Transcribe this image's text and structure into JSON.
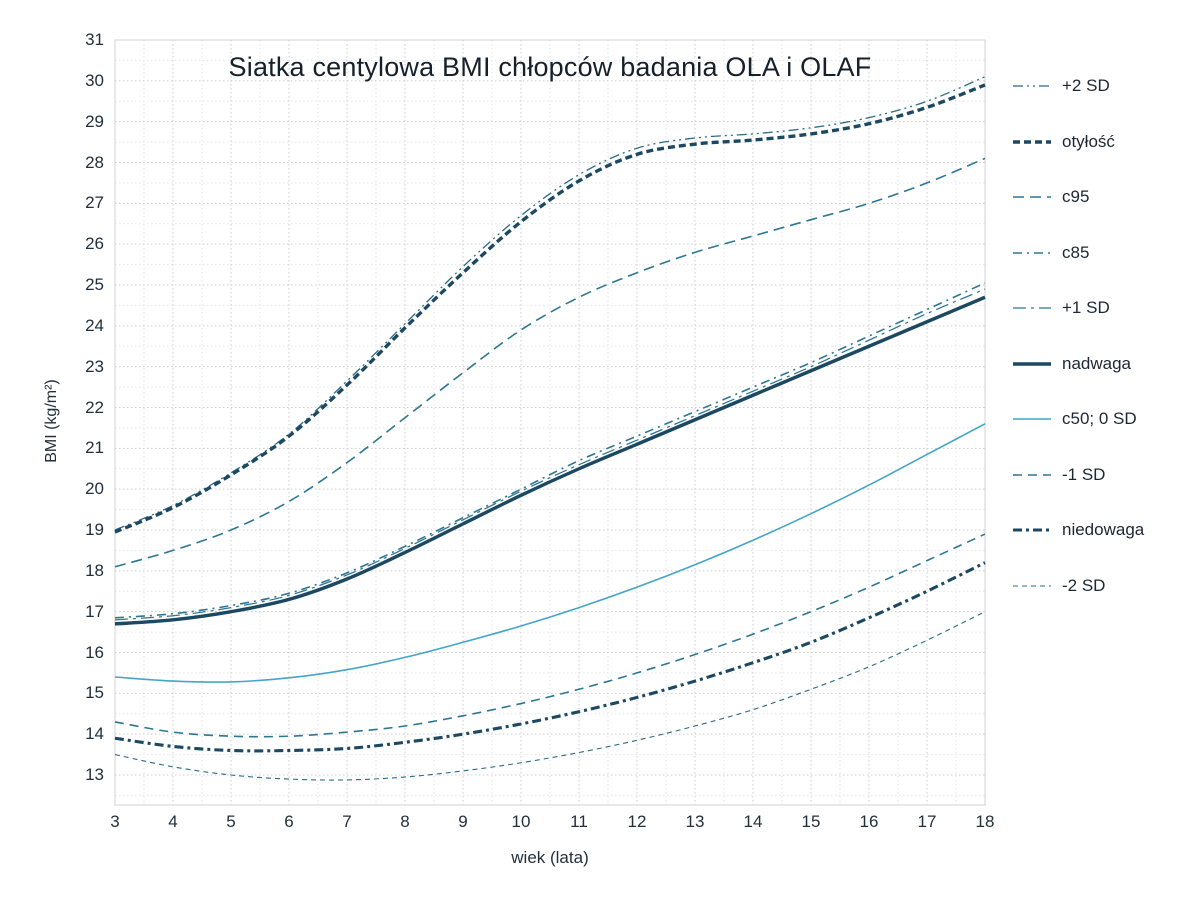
{
  "title": "Siatka centylowa BMI chłopców badania OLA i OLAF",
  "x_axis": {
    "label": "wiek (lata)",
    "ticks": [
      3,
      4,
      5,
      6,
      7,
      8,
      9,
      10,
      11,
      12,
      13,
      14,
      15,
      16,
      17,
      18
    ]
  },
  "y_axis": {
    "label": "BMI (kg/m²)",
    "ticks": [
      13,
      14,
      15,
      16,
      17,
      18,
      19,
      20,
      21,
      22,
      23,
      24,
      25,
      26,
      27,
      28,
      29,
      30,
      31
    ]
  },
  "colors": {
    "dark_line": "#1c4861",
    "medium_line": "#2d7693",
    "light_line": "#44a5c8",
    "grid_major": "#c9cdd1",
    "grid_minor": "#e4e6e8",
    "text": "#22303c",
    "title_text": "#16202b"
  },
  "chart_data": {
    "type": "line",
    "title": "Siatka centylowa BMI chłopców badania OLA i OLAF",
    "xlabel": "wiek (lata)",
    "ylabel": "BMI (kg/m²)",
    "xlim": [
      3,
      18
    ],
    "ylim": [
      12.25,
      31
    ],
    "grid": "on",
    "legend_position": "right",
    "x": [
      3,
      4,
      5,
      6,
      7,
      8,
      9,
      10,
      11,
      12,
      13,
      14,
      15,
      16,
      17,
      18
    ],
    "series": [
      {
        "name": "+2 SD",
        "values": [
          19.0,
          19.6,
          20.4,
          21.35,
          22.65,
          24.05,
          25.45,
          26.7,
          27.7,
          28.35,
          28.6,
          28.7,
          28.85,
          29.1,
          29.5,
          30.1
        ],
        "color": "#2b6b85",
        "width": 1.3,
        "dash": "10 4 2 4 2 4"
      },
      {
        "name": "otyłość",
        "values": [
          18.95,
          19.55,
          20.35,
          21.3,
          22.55,
          23.95,
          25.3,
          26.55,
          27.55,
          28.2,
          28.45,
          28.55,
          28.7,
          28.95,
          29.35,
          29.9
        ],
        "color": "#1c4861",
        "width": 3.4,
        "dash": "7 4"
      },
      {
        "name": "c95",
        "values": [
          18.1,
          18.5,
          19.0,
          19.7,
          20.65,
          21.75,
          22.85,
          23.9,
          24.7,
          25.3,
          25.8,
          26.2,
          26.6,
          27.0,
          27.5,
          28.1
        ],
        "color": "#2d7693",
        "width": 1.6,
        "dash": "11 6"
      },
      {
        "name": "c85",
        "values": [
          16.85,
          16.95,
          17.15,
          17.45,
          17.95,
          18.6,
          19.3,
          20.0,
          20.7,
          21.3,
          21.9,
          22.5,
          23.1,
          23.75,
          24.4,
          25.05
        ],
        "color": "#2d7693",
        "width": 1.6,
        "dash": "9 5 2 5"
      },
      {
        "name": "+1 SD",
        "values": [
          16.8,
          16.9,
          17.1,
          17.4,
          17.9,
          18.55,
          19.25,
          19.95,
          20.6,
          21.2,
          21.8,
          22.4,
          23.0,
          23.65,
          24.3,
          24.9
        ],
        "color": "#2d7693",
        "width": 1.25,
        "dash": "13 5 3 5"
      },
      {
        "name": "nadwaga",
        "values": [
          16.7,
          16.8,
          17.0,
          17.3,
          17.8,
          18.45,
          19.15,
          19.85,
          20.5,
          21.1,
          21.7,
          22.3,
          22.9,
          23.5,
          24.1,
          24.7
        ],
        "color": "#1c4861",
        "width": 3.4,
        "dash": null
      },
      {
        "name": "c50; 0 SD",
        "values": [
          15.4,
          15.3,
          15.28,
          15.38,
          15.58,
          15.88,
          16.25,
          16.65,
          17.1,
          17.6,
          18.15,
          18.75,
          19.4,
          20.1,
          20.85,
          21.6
        ],
        "color": "#44a5c8",
        "width": 1.6,
        "dash": null
      },
      {
        "name": "-1 SD",
        "values": [
          14.3,
          14.05,
          13.95,
          13.95,
          14.05,
          14.2,
          14.45,
          14.75,
          15.1,
          15.5,
          15.95,
          16.45,
          17.0,
          17.6,
          18.25,
          18.9
        ],
        "color": "#2d7693",
        "width": 1.6,
        "dash": "9 6"
      },
      {
        "name": "niedowaga",
        "values": [
          13.9,
          13.7,
          13.6,
          13.6,
          13.65,
          13.8,
          14.0,
          14.25,
          14.55,
          14.9,
          15.3,
          15.75,
          16.25,
          16.85,
          17.5,
          18.2
        ],
        "color": "#1c4861",
        "width": 3.1,
        "dash": "9 4 3 4"
      },
      {
        "name": "-2 SD",
        "values": [
          13.5,
          13.2,
          13.0,
          12.9,
          12.88,
          12.95,
          13.1,
          13.3,
          13.55,
          13.85,
          14.2,
          14.6,
          15.1,
          15.65,
          16.3,
          17.0
        ],
        "color": "#2b6b85",
        "width": 1.1,
        "dash": "5 4"
      }
    ]
  }
}
